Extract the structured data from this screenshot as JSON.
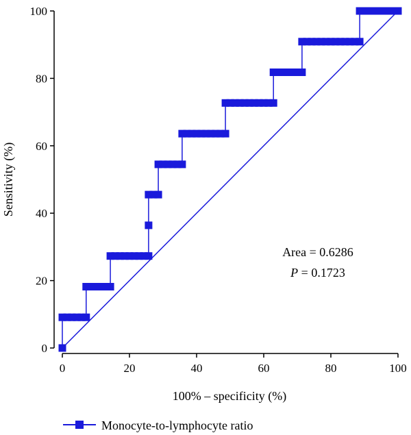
{
  "chart_data": {
    "type": "line",
    "xlabel": "100% – specificity (%)",
    "ylabel": "Sensitivity (%)",
    "xlim": [
      0,
      100
    ],
    "ylim": [
      0,
      100
    ],
    "xticks": [
      "0",
      "20",
      "40",
      "60",
      "80",
      "100"
    ],
    "yticks": [
      "0",
      "20",
      "40",
      "60",
      "80",
      "100"
    ],
    "grid": false,
    "legend_position": "bottom",
    "color": "#1a1adb",
    "series": [
      {
        "name": "Monocyte-to-lymphocyte ratio",
        "steps": [
          {
            "x": 0,
            "y": 0
          },
          {
            "x": 0,
            "y": 9.1
          },
          {
            "x": 7.1,
            "y": 9.1
          },
          {
            "x": 7.1,
            "y": 18.2
          },
          {
            "x": 14.3,
            "y": 18.2
          },
          {
            "x": 14.3,
            "y": 27.3
          },
          {
            "x": 25.7,
            "y": 27.3
          },
          {
            "x": 25.7,
            "y": 36.4
          },
          {
            "x": 25.7,
            "y": 45.5
          },
          {
            "x": 28.6,
            "y": 45.5
          },
          {
            "x": 28.6,
            "y": 54.5
          },
          {
            "x": 35.7,
            "y": 54.5
          },
          {
            "x": 35.7,
            "y": 63.6
          },
          {
            "x": 48.6,
            "y": 63.6
          },
          {
            "x": 48.6,
            "y": 72.7
          },
          {
            "x": 62.9,
            "y": 72.7
          },
          {
            "x": 62.9,
            "y": 81.8
          },
          {
            "x": 71.4,
            "y": 81.8
          },
          {
            "x": 71.4,
            "y": 90.9
          },
          {
            "x": 88.6,
            "y": 90.9
          },
          {
            "x": 88.6,
            "y": 100
          },
          {
            "x": 100,
            "y": 100
          }
        ]
      }
    ],
    "reference_line": {
      "x": [
        0,
        100
      ],
      "y": [
        0,
        100
      ]
    },
    "annotation": {
      "area_line": "Area = 0.6286",
      "p_symbol": "P",
      "p_rest": " = 0.1723"
    }
  }
}
